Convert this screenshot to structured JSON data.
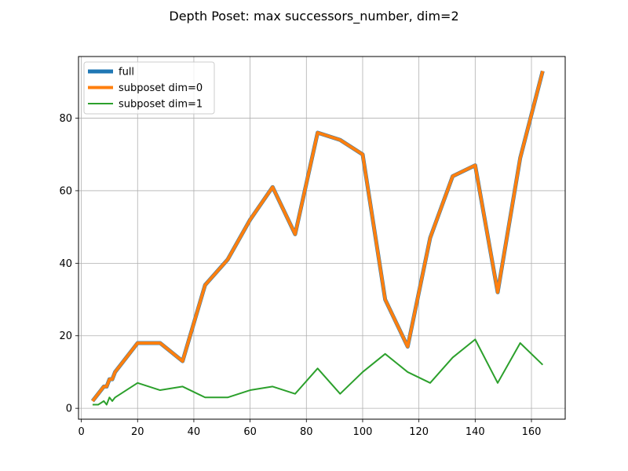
{
  "chart_data": {
    "type": "line",
    "title": "Depth Poset: max successors_number, dim=2",
    "xlabel": "",
    "ylabel": "",
    "xlim": [
      -1,
      172
    ],
    "ylim": [
      -3,
      97
    ],
    "xticks": [
      0,
      20,
      40,
      60,
      80,
      100,
      120,
      140,
      160
    ],
    "yticks": [
      0,
      20,
      40,
      60,
      80
    ],
    "grid": true,
    "legend_position": "top-left",
    "series": [
      {
        "name": "full",
        "color": "#1f77b4",
        "x": [
          4,
          6,
          8,
          9,
          10,
          11,
          12,
          20,
          28,
          36,
          44,
          52,
          60,
          68,
          76,
          84,
          92,
          100,
          108,
          116,
          124,
          132,
          140,
          148,
          156,
          164
        ],
        "y": [
          2,
          4,
          6,
          6,
          8,
          8,
          10,
          18,
          18,
          13,
          34,
          41,
          52,
          61,
          48,
          76,
          74,
          70,
          30,
          17,
          47,
          64,
          67,
          32,
          69,
          93
        ]
      },
      {
        "name": "subposet dim=0",
        "color": "#ff7f0e",
        "x": [
          4,
          6,
          8,
          9,
          10,
          11,
          12,
          20,
          28,
          36,
          44,
          52,
          60,
          68,
          76,
          84,
          92,
          100,
          108,
          116,
          124,
          132,
          140,
          148,
          156,
          164
        ],
        "y": [
          2,
          4,
          6,
          6,
          8,
          8,
          10,
          18,
          18,
          13,
          34,
          41,
          52,
          61,
          48,
          76,
          74,
          70,
          30,
          17,
          47,
          64,
          67,
          32,
          69,
          93
        ]
      },
      {
        "name": "subposet dim=1",
        "color": "#2ca02c",
        "x": [
          4,
          6,
          8,
          9,
          10,
          11,
          12,
          20,
          28,
          36,
          44,
          52,
          60,
          68,
          76,
          84,
          92,
          100,
          108,
          116,
          124,
          132,
          140,
          148,
          156,
          164
        ],
        "y": [
          1,
          1,
          2,
          1,
          3,
          2,
          3,
          7,
          5,
          6,
          3,
          3,
          5,
          6,
          4,
          11,
          4,
          10,
          15,
          10,
          7,
          14,
          19,
          7,
          18,
          12
        ]
      }
    ]
  }
}
